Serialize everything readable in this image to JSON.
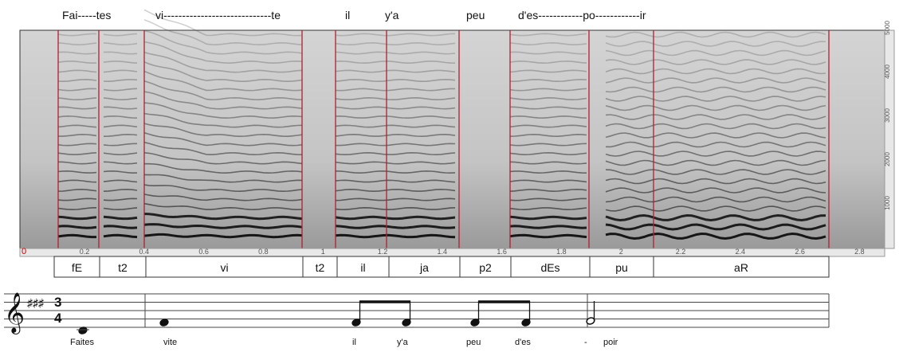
{
  "top_lyrics": [
    "Fai-----tes",
    "vi-----------------------------te",
    "il",
    "y'a",
    "peu",
    "d'es------------po------------ir"
  ],
  "time_ticks": [
    0.2,
    0.4,
    0.6,
    0.8,
    1.0,
    1.2,
    1.4,
    1.6,
    1.8,
    2.0,
    2.2,
    2.4,
    2.6,
    2.8
  ],
  "time_origin": "0",
  "freq_ticks": [
    5000,
    4000,
    3000,
    2000,
    1000
  ],
  "phonemes": [
    "fE",
    "t2",
    "vi",
    "t2",
    "il",
    "ja",
    "p2",
    "dEs",
    "pu",
    "aR"
  ],
  "time_signature": {
    "top": "3",
    "bottom": "4"
  },
  "score_lyrics": [
    "Faites",
    "vite",
    "il",
    "y'a",
    "peu",
    "d'es",
    "-",
    "poir"
  ]
}
